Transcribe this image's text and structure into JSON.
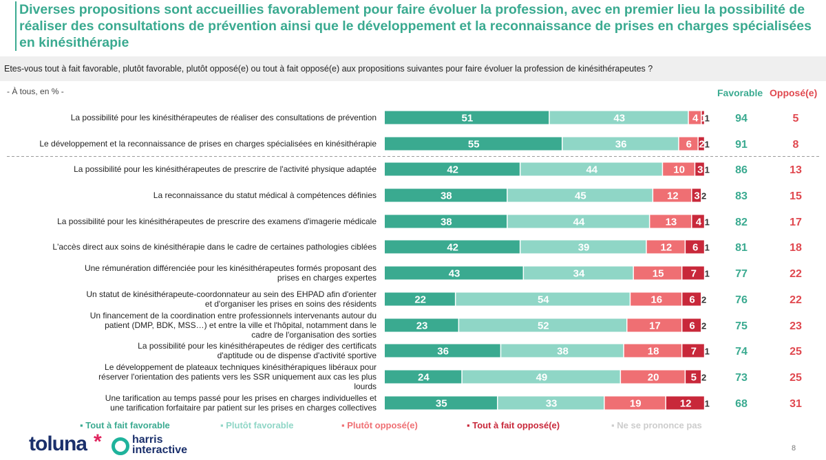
{
  "title": "Diverses propositions sont accueillies favorablement pour faire évoluer la profession, avec en premier lieu la possibilité de réaliser des consultations de prévention ainsi que le développement et la reconnaissance de prises en charges spécialisées en kinésithérapie",
  "question": "Etes-vous tout à fait favorable, plutôt favorable, plutôt opposé(e) ou tout à fait opposé(e) aux propositions suivantes pour faire évoluer la profession de kinésithérapeutes ?",
  "base": "- À tous, en % -",
  "col_favorable": "Favorable",
  "col_oppose": "Opposé(e)",
  "page_number": "8",
  "logo": {
    "brand": "toluna",
    "star": "*",
    "partner_line1": "harris",
    "partner_line2": "interactive"
  },
  "colors": {
    "tout_favorable": "#3aaa90",
    "plutot_favorable": "#8fd6c6",
    "plutot_oppose": "#ef6f73",
    "tout_oppose": "#c8283a",
    "nsp": "#cccccc",
    "favorable_text": "#3aaa90",
    "oppose_text": "#e0484f"
  },
  "chart_data": {
    "type": "bar",
    "orientation": "horizontal",
    "stacked": true,
    "xlim": [
      0,
      100
    ],
    "separator_after_index": 1,
    "categories": [
      "La possibilité pour les kinésithérapeutes de réaliser des consultations de prévention",
      "Le développement et la reconnaissance de prises en charges spécialisées en kinésithérapie",
      "La possibilité pour les kinésithérapeutes de prescrire de l'activité physique adaptée",
      "La reconnaissance du statut médical à compétences définies",
      "La possibilité pour les kinésithérapeutes de prescrire des examens d'imagerie médicale",
      "L'accès direct aux soins de kinésithérapie dans le cadre de certaines pathologies ciblées",
      "Une rémunération différenciée pour les kinésithérapeutes formés proposant des prises en charges expertes",
      "Un statut de kinésithérapeute-coordonnateur au sein des EHPAD afin d'orienter et d'organiser les prises en soins des résidents",
      "Un financement de la coordination entre professionnels intervenants autour du patient (DMP, BDK, MSS…) et entre la ville et l'hôpital, notamment dans le cadre de l'organisation des sorties",
      "La possibilité pour les kinésithérapeutes de rédiger des certificats d'aptitude ou de dispense d'activité sportive",
      "Le développement de plateaux techniques kinésithérapiques libéraux pour réserver l'orientation des patients vers les SSR uniquement aux cas les plus lourds",
      "Une tarification au temps passé pour les prises en charges individuelles et une tarification forfaitaire par patient sur les prises en charges collectives"
    ],
    "series": [
      {
        "name": "Tout à fait favorable",
        "color_key": "tout_favorable",
        "values": [
          51,
          55,
          42,
          38,
          38,
          42,
          43,
          22,
          23,
          36,
          24,
          35
        ]
      },
      {
        "name": "Plutôt favorable",
        "color_key": "plutot_favorable",
        "values": [
          43,
          36,
          44,
          45,
          44,
          39,
          34,
          54,
          52,
          38,
          49,
          33
        ]
      },
      {
        "name": "Plutôt opposé(e)",
        "color_key": "plutot_oppose",
        "values": [
          4,
          6,
          10,
          12,
          13,
          12,
          15,
          16,
          17,
          18,
          20,
          19
        ]
      },
      {
        "name": "Tout à fait opposé(e)",
        "color_key": "tout_oppose",
        "values": [
          1,
          2,
          3,
          3,
          4,
          6,
          7,
          6,
          6,
          7,
          5,
          12
        ]
      },
      {
        "name": "Ne se prononce pas",
        "color_key": "nsp",
        "values": [
          1,
          1,
          1,
          2,
          1,
          1,
          1,
          2,
          2,
          1,
          2,
          1
        ]
      }
    ],
    "favorable": [
      94,
      91,
      86,
      83,
      82,
      81,
      77,
      76,
      75,
      74,
      73,
      68
    ],
    "oppose": [
      5,
      8,
      13,
      15,
      17,
      18,
      22,
      22,
      23,
      25,
      25,
      31
    ],
    "legend": [
      "Tout à fait favorable",
      "Plutôt favorable",
      "Plutôt opposé(e)",
      "Tout à fait opposé(e)",
      "Ne se prononce pas"
    ]
  }
}
